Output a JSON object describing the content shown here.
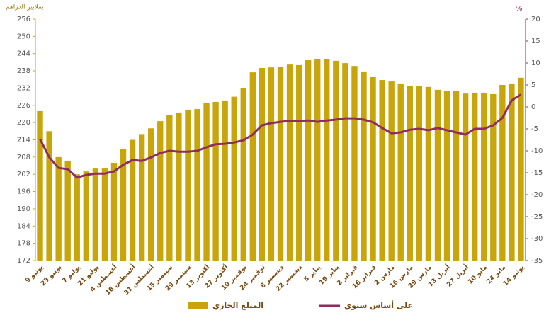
{
  "chart_data": {
    "type": "bar",
    "y_label": "بملايير الدراهم",
    "y2_label": "%",
    "categories": [
      "9 يونيو",
      null,
      "23 يونيو",
      null,
      "7 يوليو",
      null,
      "21 يوليو",
      null,
      "4 أغسطس",
      null,
      "18 أغسطس",
      null,
      "31 أغسطس",
      null,
      "15 سبتمبر",
      null,
      "29 سبتمبر",
      null,
      "13 أكتوبر",
      null,
      "27 أكتوبر",
      null,
      "10 نوفمبر",
      null,
      "24 نوفمبر",
      null,
      "8 ديسمبر",
      null,
      "22 ديسمبر",
      null,
      "5 يناير",
      null,
      "19 يناير",
      null,
      "2 فبراير",
      null,
      "16 فبراير",
      null,
      "2 مارس",
      null,
      "16 مارس",
      null,
      "29 مارس",
      null,
      "13 أبريل",
      null,
      "27 أبريل",
      null,
      "10 مايو",
      null,
      "24 مايو",
      null,
      "14 يونيو"
    ],
    "series": [
      {
        "name": "المبلغ الجاري",
        "type": "bar",
        "color": "#c8a50a",
        "values": [
          224,
          217,
          208,
          206.5,
          202,
          203,
          204,
          204,
          206,
          210.7,
          214,
          216,
          218,
          220.5,
          222.7,
          223.5,
          224.5,
          224.7,
          226.7,
          227.2,
          227.7,
          229,
          232,
          237.5,
          239,
          239.2,
          239.5,
          240.2,
          240,
          241.7,
          242.2,
          242.2,
          241.5,
          240.7,
          239.7,
          237.8,
          235.8,
          234.8,
          234.3,
          233.6,
          232.6,
          232.6,
          232.4,
          231.4,
          230.9,
          230.9,
          230.1,
          230.4,
          230.4,
          229.9,
          233.1,
          233.6,
          235.6
        ]
      },
      {
        "name": "على أساس سنوي",
        "type": "line",
        "axis": "y2",
        "color": "#8e2d5e",
        "values": [
          -7.3,
          -11.5,
          -13.9,
          -14.2,
          -16.1,
          -15.5,
          -15.2,
          -15.2,
          -14.7,
          -13.2,
          -12.1,
          -12.3,
          -11.5,
          -10.5,
          -10,
          -10.2,
          -10.2,
          -10,
          -9.2,
          -8.5,
          -8.4,
          -8.1,
          -7.6,
          -6.3,
          -4.2,
          -3.7,
          -3.4,
          -3.2,
          -3.2,
          -3.1,
          -3.4,
          -3.1,
          -2.9,
          -2.6,
          -2.6,
          -2.9,
          -3.5,
          -4.8,
          -6,
          -5.8,
          -5.2,
          -5,
          -5.3,
          -4.8,
          -5.3,
          -5.8,
          -6.3,
          -5,
          -5,
          -4.2,
          -2.5,
          1.5,
          2.8
        ]
      }
    ],
    "ylim": [
      172,
      256
    ],
    "yticks": [
      172,
      178,
      184,
      190,
      196,
      202,
      208,
      214,
      220,
      226,
      232,
      238,
      244,
      250,
      256
    ],
    "y2lim": [
      -35,
      20
    ],
    "y2ticks": [
      -35,
      -30,
      -25,
      -20,
      -15,
      -10,
      -5,
      0,
      5,
      10,
      15,
      20
    ],
    "legend": "bottom"
  }
}
